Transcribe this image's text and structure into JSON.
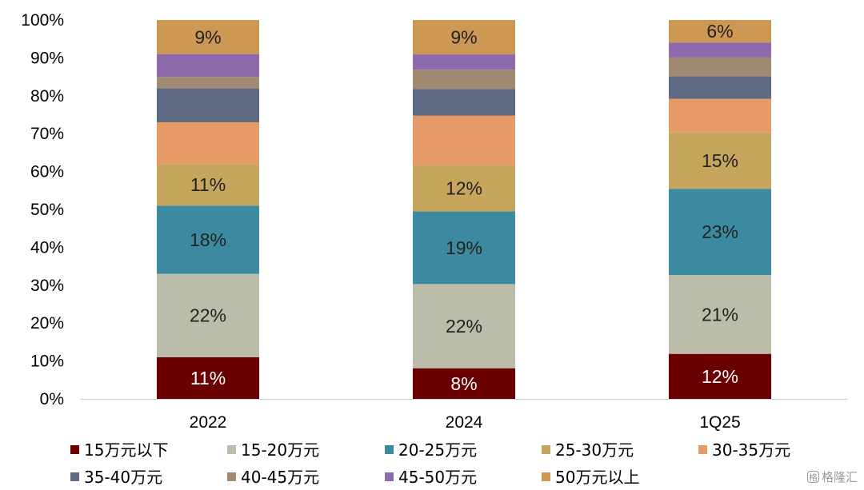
{
  "chart_data": {
    "type": "bar",
    "stacked": true,
    "percent_stacked": true,
    "title": "",
    "xlabel": "",
    "ylabel": "",
    "ylim": [
      0,
      100
    ],
    "yticks": [
      "0%",
      "10%",
      "20%",
      "30%",
      "40%",
      "50%",
      "60%",
      "70%",
      "80%",
      "90%",
      "100%"
    ],
    "categories": [
      "2022",
      "2024",
      "1Q25"
    ],
    "legend_position": "bottom",
    "grid": false,
    "series": [
      {
        "name": "15万元以下",
        "color": "#6b0000",
        "label_color": "#ffffff",
        "values": [
          11,
          8,
          12
        ],
        "labels": [
          "11%",
          "8%",
          "12%"
        ]
      },
      {
        "name": "15-20万元",
        "color": "#bcbcaa",
        "label_color": "#222222",
        "values": [
          22,
          22,
          21
        ],
        "labels": [
          "22%",
          "22%",
          "21%"
        ]
      },
      {
        "name": "20-25万元",
        "color": "#3c8aa0",
        "label_color": "#222222",
        "values": [
          18,
          19,
          23
        ],
        "labels": [
          "18%",
          "19%",
          "23%"
        ]
      },
      {
        "name": "25-30万元",
        "color": "#c5a65c",
        "label_color": "#222222",
        "values": [
          11,
          12,
          15
        ],
        "labels": [
          "11%",
          "12%",
          "15%"
        ]
      },
      {
        "name": "30-35万元",
        "color": "#e69a66",
        "label_color": "#222222",
        "values": [
          11,
          13,
          9
        ],
        "labels": [
          "",
          "",
          ""
        ]
      },
      {
        "name": "35-40万元",
        "color": "#5f6a85",
        "label_color": "#222222",
        "values": [
          9,
          7,
          6
        ],
        "labels": [
          "",
          "",
          ""
        ]
      },
      {
        "name": "40-45万元",
        "color": "#a08a72",
        "label_color": "#222222",
        "values": [
          3,
          5,
          5
        ],
        "labels": [
          "",
          "",
          ""
        ]
      },
      {
        "name": "45-50万元",
        "color": "#8d6aac",
        "label_color": "#222222",
        "values": [
          6,
          4,
          4
        ],
        "labels": [
          "",
          "",
          ""
        ]
      },
      {
        "name": "50万元以上",
        "color": "#cd9853",
        "label_color": "#222222",
        "values": [
          9,
          9,
          6
        ],
        "labels": [
          "9%",
          "9%",
          "6%"
        ]
      }
    ]
  },
  "watermark": {
    "icon": "格",
    "text": "格隆汇"
  }
}
